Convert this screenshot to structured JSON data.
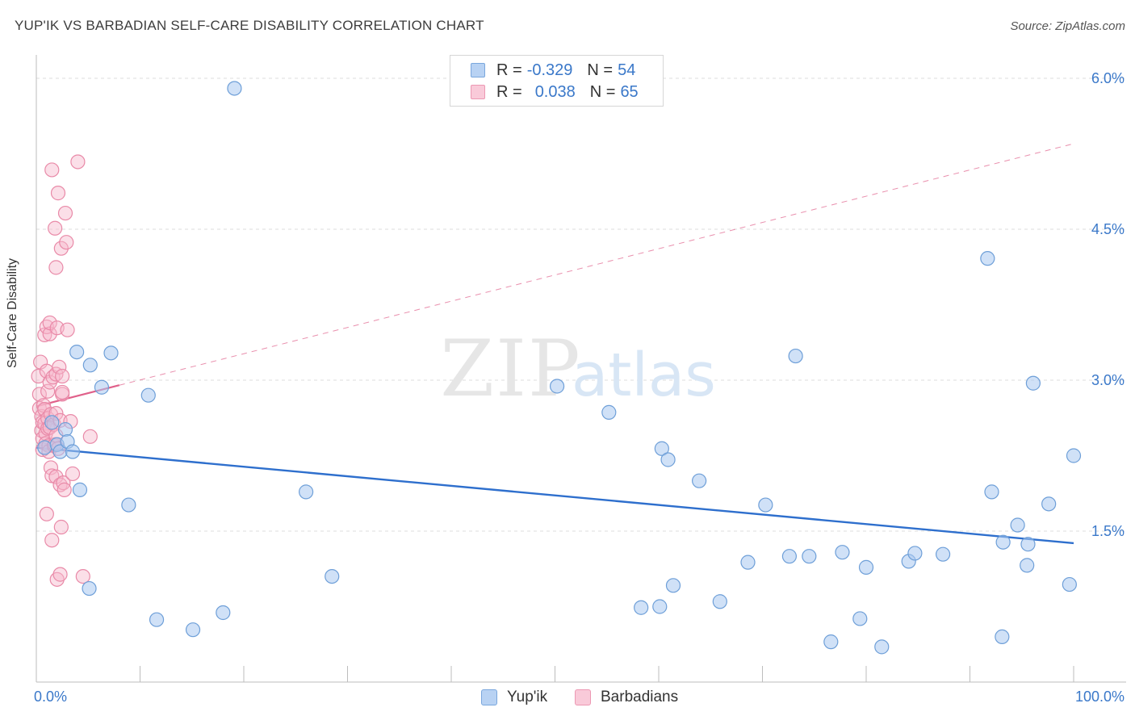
{
  "title": "YUP'IK VS BARBADIAN SELF-CARE DISABILITY CORRELATION CHART",
  "source": "Source: ZipAtlas.com",
  "watermark": {
    "zip": "ZIP",
    "atlas": "atlas"
  },
  "colors": {
    "blue_fill": "#a9c8f0",
    "blue_stroke": "#6e9fd8",
    "blue_line": "#2e6fcd",
    "pink_fill": "#f6b8cc",
    "pink_stroke": "#e98aa8",
    "pink_line": "#e0608a",
    "axis_text": "#3a78c9",
    "grid": "#dcdcdc"
  },
  "legend": {
    "rows": [
      {
        "r_label": "R =",
        "r_value": "-0.329",
        "n_label": "N =",
        "n_value": "54",
        "series": "blue"
      },
      {
        "r_label": "R =",
        "r_value": "0.038",
        "n_label": "N =",
        "n_value": "65",
        "series": "pink"
      }
    ]
  },
  "bottom_legend": [
    {
      "label": "Yup'ik",
      "series": "blue"
    },
    {
      "label": "Barbadians",
      "series": "pink"
    }
  ],
  "chart_data": {
    "type": "scatter",
    "title": "YUP'IK VS BARBADIAN SELF-CARE DISABILITY CORRELATION CHART",
    "ylabel": "Self-Care Disability",
    "xlim": [
      0,
      100
    ],
    "ylim": [
      0,
      6.25
    ],
    "x_tick_labels": [
      {
        "value": 0,
        "label": "0.0%"
      },
      {
        "value": 100,
        "label": "100.0%"
      }
    ],
    "y_tick_labels": [
      {
        "value": 1.5,
        "label": "1.5%"
      },
      {
        "value": 3.0,
        "label": "3.0%"
      },
      {
        "value": 4.5,
        "label": "4.5%"
      },
      {
        "value": 6.0,
        "label": "6.0%"
      }
    ],
    "grid": "horizontal dashed",
    "legend_position": "top-center",
    "series": [
      {
        "name": "Yup'ik",
        "color": "#a9c8f0",
        "R": -0.329,
        "N": 54,
        "trend": {
          "x": [
            0,
            100
          ],
          "y": [
            2.33,
            1.38
          ],
          "style": "solid"
        },
        "points": [
          [
            0.8,
            2.33
          ],
          [
            1.5,
            2.58
          ],
          [
            2.0,
            2.36
          ],
          [
            2.3,
            2.29
          ],
          [
            2.8,
            2.51
          ],
          [
            3.0,
            2.39
          ],
          [
            3.5,
            2.29
          ],
          [
            3.9,
            3.28
          ],
          [
            4.2,
            1.91
          ],
          [
            5.1,
            0.93
          ],
          [
            5.2,
            3.15
          ],
          [
            6.3,
            2.93
          ],
          [
            7.2,
            3.27
          ],
          [
            8.9,
            1.76
          ],
          [
            10.8,
            2.85
          ],
          [
            11.6,
            0.62
          ],
          [
            15.1,
            0.52
          ],
          [
            18.0,
            0.69
          ],
          [
            19.1,
            5.9
          ],
          [
            26.0,
            1.89
          ],
          [
            28.5,
            1.05
          ],
          [
            50.2,
            2.94
          ],
          [
            55.2,
            2.68
          ],
          [
            58.3,
            0.74
          ],
          [
            60.1,
            0.75
          ],
          [
            60.3,
            2.32
          ],
          [
            60.9,
            2.21
          ],
          [
            61.4,
            0.96
          ],
          [
            63.9,
            2.0
          ],
          [
            65.9,
            0.8
          ],
          [
            68.6,
            1.19
          ],
          [
            70.3,
            1.76
          ],
          [
            72.6,
            1.25
          ],
          [
            73.2,
            3.24
          ],
          [
            74.5,
            1.25
          ],
          [
            76.6,
            0.4
          ],
          [
            77.7,
            1.29
          ],
          [
            79.4,
            0.63
          ],
          [
            80.0,
            1.14
          ],
          [
            81.5,
            0.35
          ],
          [
            84.1,
            1.2
          ],
          [
            84.7,
            1.28
          ],
          [
            87.4,
            1.27
          ],
          [
            91.7,
            4.21
          ],
          [
            92.1,
            1.89
          ],
          [
            93.1,
            0.45
          ],
          [
            93.2,
            1.39
          ],
          [
            94.6,
            1.56
          ],
          [
            95.5,
            1.16
          ],
          [
            95.6,
            1.37
          ],
          [
            96.1,
            2.97
          ],
          [
            97.6,
            1.77
          ],
          [
            99.6,
            0.97
          ],
          [
            100.0,
            2.25
          ]
        ]
      },
      {
        "name": "Barbadians",
        "color": "#f6b8cc",
        "R": 0.038,
        "N": 65,
        "trend": {
          "x": [
            0,
            8
          ],
          "y": [
            2.74,
            2.95
          ],
          "style": "solid",
          "extended": {
            "x": [
              8,
              100
            ],
            "y": [
              2.95,
              5.35
            ],
            "style": "dashed"
          }
        },
        "points": [
          [
            0.2,
            3.04
          ],
          [
            0.3,
            2.86
          ],
          [
            0.3,
            2.72
          ],
          [
            0.4,
            3.18
          ],
          [
            0.5,
            2.64
          ],
          [
            0.5,
            2.5
          ],
          [
            0.6,
            2.58
          ],
          [
            0.6,
            2.42
          ],
          [
            0.6,
            2.31
          ],
          [
            0.7,
            2.75
          ],
          [
            0.8,
            3.45
          ],
          [
            0.8,
            2.71
          ],
          [
            0.8,
            2.57
          ],
          [
            0.9,
            2.47
          ],
          [
            0.9,
            2.37
          ],
          [
            1.0,
            1.67
          ],
          [
            1.0,
            3.53
          ],
          [
            1.0,
            3.09
          ],
          [
            1.1,
            2.89
          ],
          [
            1.1,
            2.62
          ],
          [
            1.1,
            2.52
          ],
          [
            1.2,
            2.35
          ],
          [
            1.2,
            2.29
          ],
          [
            1.3,
            3.46
          ],
          [
            1.3,
            2.53
          ],
          [
            1.3,
            3.57
          ],
          [
            1.3,
            2.98
          ],
          [
            1.4,
            2.66
          ],
          [
            1.4,
            2.13
          ],
          [
            1.5,
            5.09
          ],
          [
            1.5,
            2.05
          ],
          [
            1.5,
            1.41
          ],
          [
            1.6,
            3.03
          ],
          [
            1.7,
            2.56
          ],
          [
            1.7,
            2.35
          ],
          [
            1.8,
            4.51
          ],
          [
            1.8,
            2.36
          ],
          [
            1.9,
            4.12
          ],
          [
            1.9,
            3.06
          ],
          [
            1.9,
            2.45
          ],
          [
            1.9,
            2.04
          ],
          [
            1.9,
            2.67
          ],
          [
            2.0,
            3.52
          ],
          [
            2.0,
            1.02
          ],
          [
            2.1,
            4.86
          ],
          [
            2.1,
            2.32
          ],
          [
            2.2,
            3.13
          ],
          [
            2.3,
            2.6
          ],
          [
            2.3,
            1.96
          ],
          [
            2.3,
            1.07
          ],
          [
            2.4,
            4.31
          ],
          [
            2.4,
            1.54
          ],
          [
            2.5,
            3.04
          ],
          [
            2.5,
            2.86
          ],
          [
            2.5,
            2.88
          ],
          [
            2.6,
            1.98
          ],
          [
            2.7,
            1.91
          ],
          [
            2.8,
            4.66
          ],
          [
            2.9,
            4.37
          ],
          [
            3.0,
            3.5
          ],
          [
            3.3,
            2.59
          ],
          [
            3.5,
            2.07
          ],
          [
            4.0,
            5.17
          ],
          [
            4.5,
            1.05
          ],
          [
            5.2,
            2.44
          ]
        ]
      }
    ]
  }
}
